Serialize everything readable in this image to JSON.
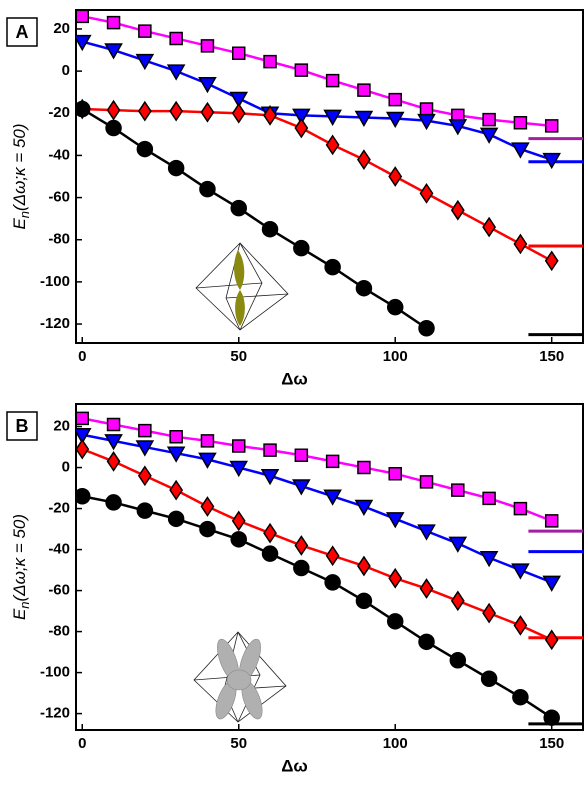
{
  "chart_data": [
    {
      "type": "line",
      "panel": "A",
      "xlabel": "Δω",
      "ylabel": "E",
      "ylabel_subscript": "n",
      "ylabel_rest": "(Δω;κ = 50)",
      "x": [
        0,
        10,
        20,
        30,
        40,
        50,
        60,
        70,
        80,
        90,
        100,
        110,
        120,
        130,
        140,
        150
      ],
      "xlim": [
        -2,
        160
      ],
      "ylim": [
        -129,
        29
      ],
      "xticks": [
        0,
        50,
        100,
        150
      ],
      "yticks": [
        20,
        0,
        -20,
        -40,
        -60,
        -80,
        -100,
        -120
      ],
      "series": [
        {
          "color": "#ff00ff",
          "marker": "square",
          "values": [
            26,
            23,
            19,
            15.5,
            12,
            8.5,
            4.5,
            0.5,
            -4.5,
            -9,
            -13.5,
            -18,
            -21,
            -23,
            -24.5,
            -26
          ]
        },
        {
          "color": "#0000ff",
          "marker": "triangle",
          "values": [
            14,
            10,
            5,
            0,
            -6,
            -13,
            -20,
            -21,
            -21.5,
            -22,
            -22.5,
            -23.5,
            -26,
            -30,
            -37,
            -42
          ]
        },
        {
          "color": "#ff0000",
          "marker": "diamond",
          "values": [
            -18,
            -18.5,
            -19,
            -19,
            -19.5,
            -20,
            -21,
            -27,
            -35,
            -42,
            -50,
            -58,
            -66,
            -74,
            -82,
            -90
          ]
        },
        {
          "color": "#000000",
          "marker": "circle",
          "values": [
            -18,
            -27,
            -37,
            -46,
            -56,
            -65,
            -75,
            -84,
            -93,
            -103,
            -112,
            -122,
            null,
            null,
            null,
            null
          ]
        }
      ],
      "reference_levels": [
        {
          "color": "#a020a0",
          "value": -32
        },
        {
          "color": "#0000ff",
          "value": -43
        },
        {
          "color": "#ff0000",
          "value": -83
        },
        {
          "color": "#000000",
          "value": -125
        }
      ]
    },
    {
      "type": "line",
      "panel": "B",
      "xlabel": "Δω",
      "ylabel": "E",
      "ylabel_subscript": "n",
      "ylabel_rest": "(Δω;κ = 50)",
      "x": [
        0,
        10,
        20,
        30,
        40,
        50,
        60,
        70,
        80,
        90,
        100,
        110,
        120,
        130,
        140,
        150
      ],
      "xlim": [
        -2,
        160
      ],
      "ylim": [
        -128,
        31
      ],
      "xticks": [
        0,
        50,
        100,
        150
      ],
      "yticks": [
        20,
        0,
        -20,
        -40,
        -60,
        -80,
        -100,
        -120
      ],
      "series": [
        {
          "color": "#ff00ff",
          "marker": "square",
          "values": [
            24,
            21,
            18,
            15,
            13,
            10.5,
            8.5,
            6,
            3,
            0,
            -3,
            -7,
            -11,
            -15,
            -20,
            -26
          ]
        },
        {
          "color": "#0000ff",
          "marker": "triangle",
          "values": [
            16,
            13,
            10,
            7,
            4,
            0,
            -4,
            -9,
            -14,
            -19,
            -25,
            -31,
            -37,
            -44,
            -50,
            -56
          ]
        },
        {
          "color": "#ff0000",
          "marker": "diamond",
          "values": [
            9,
            3,
            -4,
            -11,
            -19,
            -26,
            -32,
            -38,
            -43,
            -48,
            -54,
            -59,
            -65,
            -71,
            -77,
            -84
          ]
        },
        {
          "color": "#000000",
          "marker": "circle",
          "values": [
            -14,
            -17,
            -21,
            -25,
            -30,
            -35,
            -42,
            -49,
            -56,
            -65,
            -75,
            -85,
            -94,
            -103,
            -112,
            -122
          ]
        }
      ],
      "reference_levels": [
        {
          "color": "#a020a0",
          "value": -31
        },
        {
          "color": "#0000ff",
          "value": -41
        },
        {
          "color": "#ff0000",
          "value": -83
        },
        {
          "color": "#000000",
          "value": -125
        }
      ]
    }
  ]
}
